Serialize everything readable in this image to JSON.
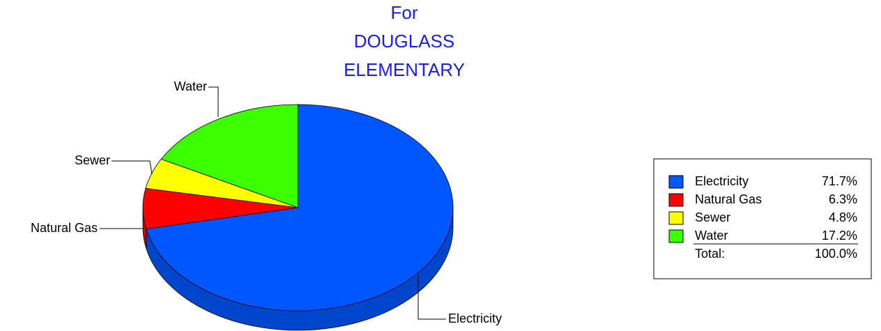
{
  "chart_data": {
    "type": "pie",
    "title": [
      "For",
      "DOUGLASS",
      "ELEMENTARY"
    ],
    "categories": [
      "Electricity",
      "Natural Gas",
      "Sewer",
      "Water"
    ],
    "values": [
      71.7,
      6.3,
      4.8,
      17.2
    ],
    "value_labels": [
      "71.7%",
      "6.3%",
      "4.8%",
      "17.2%"
    ],
    "colors": [
      "#0057ff",
      "#ff0000",
      "#ffff00",
      "#3cff00"
    ],
    "legend": {
      "position": "right",
      "total": {
        "label": "Total:",
        "value": 100,
        "value_label": "100.0%"
      }
    }
  }
}
